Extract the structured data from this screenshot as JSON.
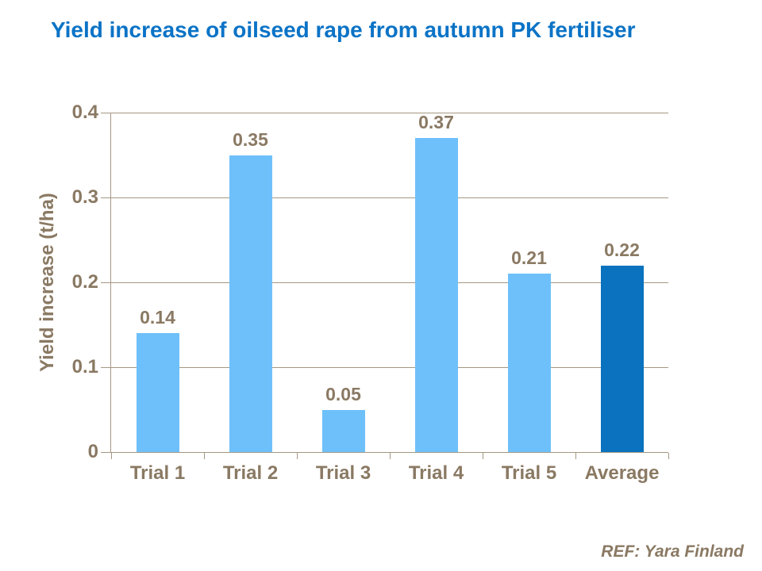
{
  "title": {
    "text": "Yield increase of oilseed rape from autumn PK fertiliser"
  },
  "footer": {
    "ref_label": "REF: Yara Finland"
  },
  "colors": {
    "title_blue": "#0A73C6",
    "bar_light_blue": "#6EC0FA",
    "bar_dark_blue": "#0A72BE",
    "axis_text_brown": "#8A7963",
    "gridline_brown": "#A59883",
    "background": "#FFFFFF"
  },
  "chart_data": {
    "type": "bar",
    "title": "Yield increase of oilseed rape from autumn PK fertiliser",
    "categories": [
      "Trial 1",
      "Trial 2",
      "Trial 3",
      "Trial 4",
      "Trial 5",
      "Average"
    ],
    "values": [
      0.14,
      0.35,
      0.05,
      0.37,
      0.21,
      0.22
    ],
    "value_labels": [
      "0.14",
      "0.35",
      "0.05",
      "0.37",
      "0.21",
      "0.22"
    ],
    "bar_colors": [
      "#6EC0FA",
      "#6EC0FA",
      "#6EC0FA",
      "#6EC0FA",
      "#6EC0FA",
      "#0A72BE"
    ],
    "xlabel": "",
    "ylabel": "Yield increase (t/ha)",
    "ylim": [
      0,
      0.4
    ],
    "yticks": [
      0,
      0.1,
      0.2,
      0.3,
      0.4
    ],
    "ytick_labels": [
      "0",
      "0.1",
      "0.2",
      "0.3",
      "0.4"
    ],
    "grid": true,
    "legend": false,
    "annotations": [
      "REF: Yara Finland"
    ]
  }
}
